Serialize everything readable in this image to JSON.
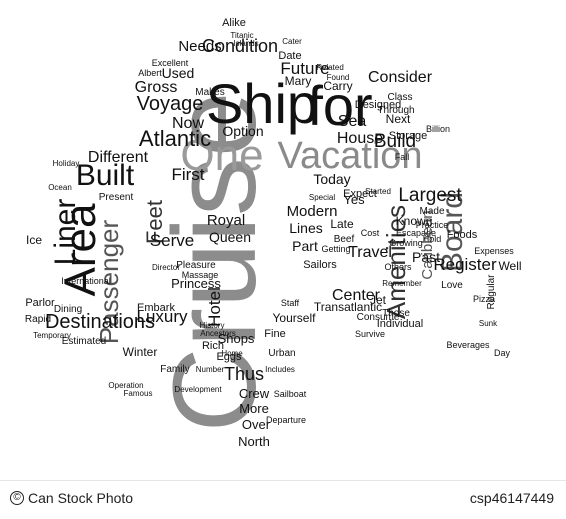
{
  "word_cloud": {
    "words": [
      {
        "text": "Cruise"
      },
      {
        "text": "Ship"
      },
      {
        "text": "for"
      },
      {
        "text": "One"
      },
      {
        "text": "Vacation"
      },
      {
        "text": "Area"
      },
      {
        "text": "Liner"
      },
      {
        "text": "Built"
      },
      {
        "text": "Passenger"
      },
      {
        "text": "Amenities"
      },
      {
        "text": "Board"
      },
      {
        "text": "Destinations"
      },
      {
        "text": "Voyage"
      },
      {
        "text": "Atlantic"
      },
      {
        "text": "Condition"
      },
      {
        "text": "Sea"
      },
      {
        "text": "Future"
      },
      {
        "text": "Feet"
      },
      {
        "text": "House"
      },
      {
        "text": "Build"
      },
      {
        "text": "Consider"
      },
      {
        "text": "Largest"
      },
      {
        "text": "Caribbean"
      },
      {
        "text": "Register"
      },
      {
        "text": "Luxury"
      },
      {
        "text": "Hotel"
      },
      {
        "text": "Center"
      },
      {
        "text": "Travel"
      },
      {
        "text": "Transatlantic"
      },
      {
        "text": "Princess"
      },
      {
        "text": "Royal"
      },
      {
        "text": "Queen"
      },
      {
        "text": "Serve"
      },
      {
        "text": "First"
      },
      {
        "text": "Different"
      },
      {
        "text": "Gross"
      },
      {
        "text": "Needs"
      },
      {
        "text": "Used"
      },
      {
        "text": "Option"
      },
      {
        "text": "Now"
      },
      {
        "text": "Today"
      },
      {
        "text": "Modern"
      },
      {
        "text": "Lines"
      },
      {
        "text": "Part"
      },
      {
        "text": "Shops"
      },
      {
        "text": "Thus"
      },
      {
        "text": "Crew"
      },
      {
        "text": "More"
      },
      {
        "text": "Over"
      },
      {
        "text": "North"
      },
      {
        "text": "Yourself"
      },
      {
        "text": "Winter"
      },
      {
        "text": "Family"
      },
      {
        "text": "Carry"
      },
      {
        "text": "Designed"
      },
      {
        "text": "Next"
      },
      {
        "text": "Storage"
      },
      {
        "text": "Class"
      },
      {
        "text": "Through"
      },
      {
        "text": "Past"
      },
      {
        "text": "Foods"
      },
      {
        "text": "Regular"
      },
      {
        "text": "Known"
      },
      {
        "text": "Individual"
      },
      {
        "text": "Consume"
      },
      {
        "text": "Those"
      },
      {
        "text": "Estimated"
      },
      {
        "text": "Embark"
      },
      {
        "text": "Parlor"
      },
      {
        "text": "Dining"
      },
      {
        "text": "Ice"
      },
      {
        "text": "Rapid"
      },
      {
        "text": "Eggs"
      },
      {
        "text": "Rich"
      },
      {
        "text": "Fine"
      },
      {
        "text": "Urban"
      },
      {
        "text": "Date"
      },
      {
        "text": "Mary"
      },
      {
        "text": "Alike"
      },
      {
        "text": "Makes"
      },
      {
        "text": "Excellent"
      },
      {
        "text": "Albert"
      },
      {
        "text": "Billion"
      },
      {
        "text": "Late"
      },
      {
        "text": "Expect"
      },
      {
        "text": "Yes"
      },
      {
        "text": "Present"
      },
      {
        "text": "Pleasure"
      },
      {
        "text": "Massage"
      },
      {
        "text": "Director"
      },
      {
        "text": "Sailors"
      },
      {
        "text": "Cost"
      },
      {
        "text": "Escapade"
      },
      {
        "text": "Jet"
      },
      {
        "text": "Love"
      },
      {
        "text": "Pizza"
      },
      {
        "text": "Well"
      },
      {
        "text": "Expenses"
      },
      {
        "text": "Beverages"
      },
      {
        "text": "Day"
      },
      {
        "text": "Made"
      },
      {
        "text": "Hold"
      },
      {
        "text": "Growing"
      },
      {
        "text": "Practice"
      },
      {
        "text": "Survive"
      },
      {
        "text": "Staff"
      },
      {
        "text": "Sailboat"
      },
      {
        "text": "Departure"
      },
      {
        "text": "Operation"
      },
      {
        "text": "Famous"
      },
      {
        "text": "Temporary"
      },
      {
        "text": "International"
      },
      {
        "text": "Holiday"
      },
      {
        "text": "Ocean"
      },
      {
        "text": "Titanic"
      },
      {
        "text": "Islands"
      },
      {
        "text": "Cater"
      },
      {
        "text": "Related"
      },
      {
        "text": "Found"
      },
      {
        "text": "Fall"
      },
      {
        "text": "Sunk"
      },
      {
        "text": "Beef"
      },
      {
        "text": "Others"
      },
      {
        "text": "Remember"
      },
      {
        "text": "Started"
      },
      {
        "text": "Getting"
      },
      {
        "text": "Special"
      },
      {
        "text": "History"
      },
      {
        "text": "Ancestors"
      },
      {
        "text": "Development"
      },
      {
        "text": "Number"
      },
      {
        "text": "Home"
      },
      {
        "text": "Includes"
      }
    ]
  },
  "footer": {
    "copyright_symbol": "©",
    "credit": "Can Stock Photo",
    "image_id": "csp46147449"
  }
}
